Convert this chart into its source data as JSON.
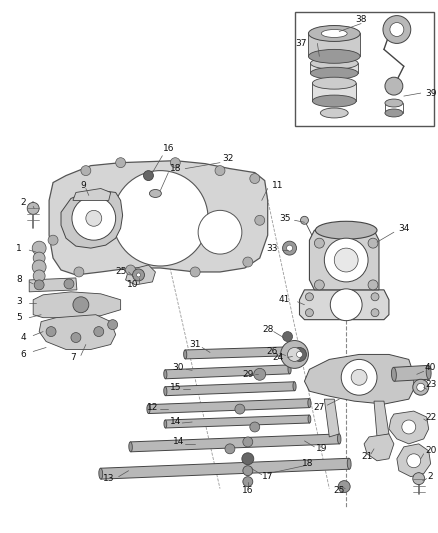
{
  "bg_color": "#ffffff",
  "fig_width": 4.39,
  "fig_height": 5.33,
  "dpi": 100,
  "gray_dark": "#666666",
  "gray_mid": "#999999",
  "gray_light": "#cccccc",
  "gray_fill": "#b8b8b8",
  "line_color": "#444444",
  "leader_color": "#555555"
}
